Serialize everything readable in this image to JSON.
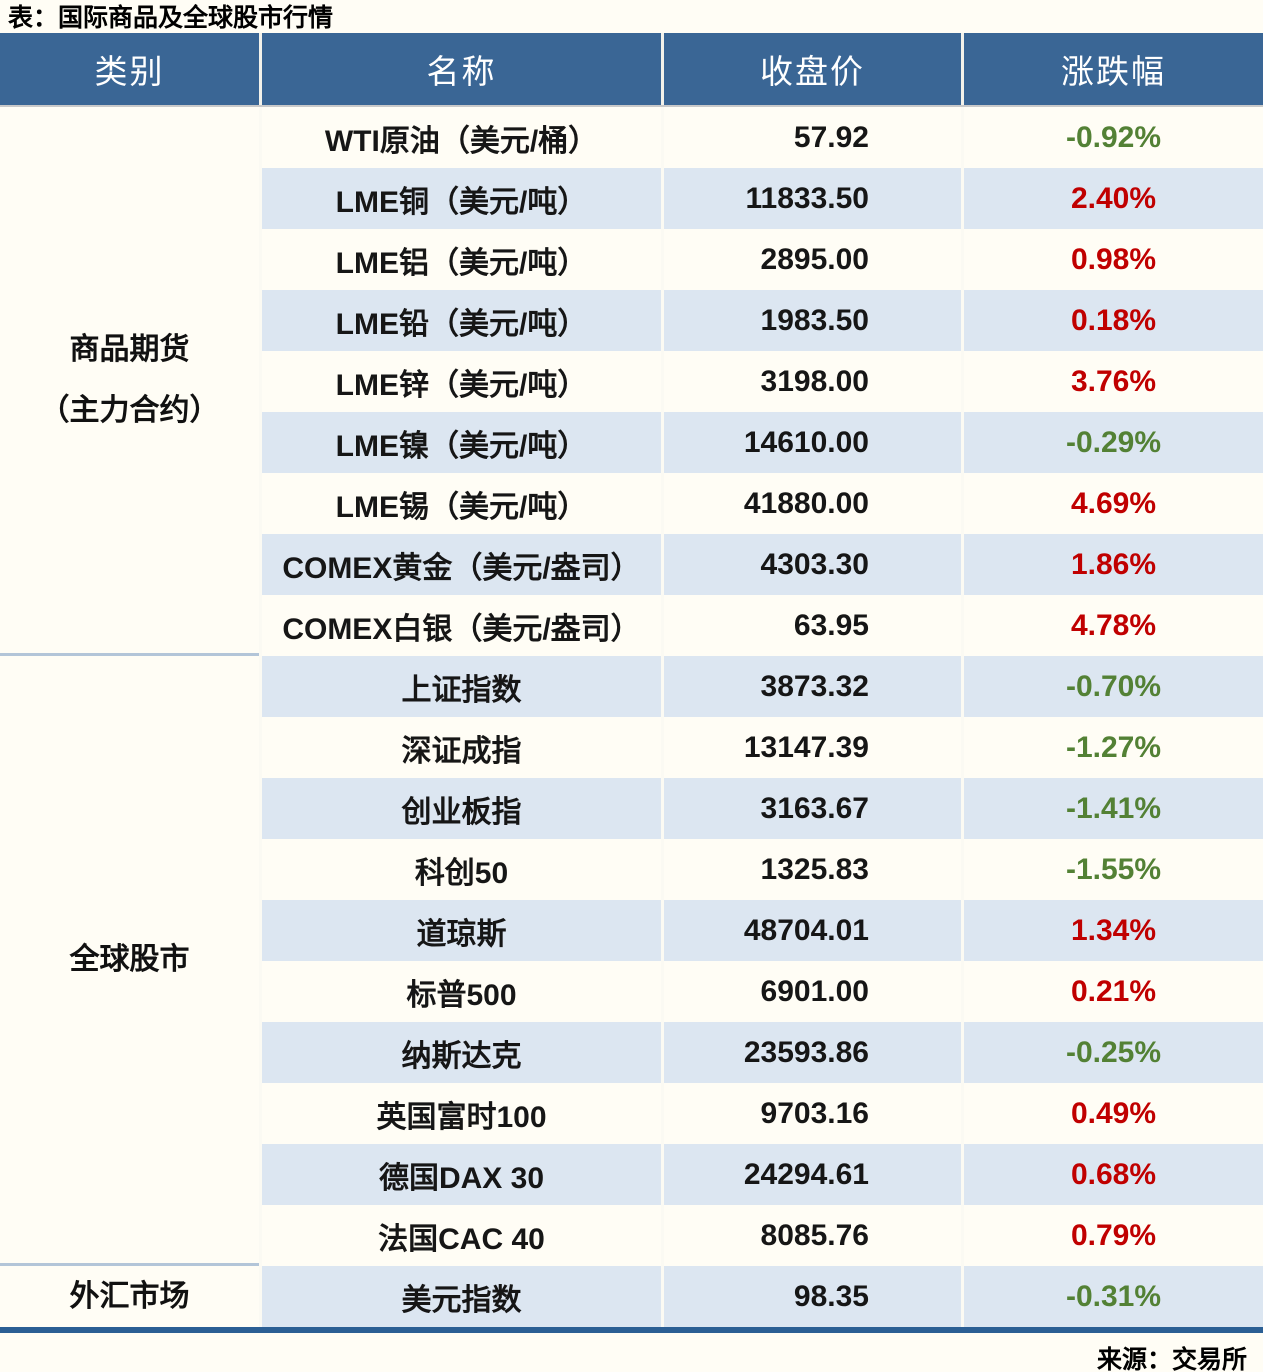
{
  "title": "表：国际商品及全球股市行情",
  "source": "来源：交易所",
  "columns": [
    "类别",
    "名称",
    "收盘价",
    "涨跌幅"
  ],
  "colors": {
    "up_red": "#c00000",
    "down_green": "#538135",
    "header_bg": "#3a6695",
    "row_stripe": "#dce6f1",
    "bottom_rule": "#2b5f94"
  },
  "sections": [
    {
      "category": "商品期货（主力合约）",
      "category_lines": [
        "商品期货",
        "（主力合约）"
      ],
      "rows": [
        {
          "name": "WTI原油（美元/桶）",
          "close": "57.92",
          "change": "-0.92%",
          "dir": "down"
        },
        {
          "name": "LME铜（美元/吨）",
          "close": "11833.50",
          "change": "2.40%",
          "dir": "up"
        },
        {
          "name": "LME铝（美元/吨）",
          "close": "2895.00",
          "change": "0.98%",
          "dir": "up"
        },
        {
          "name": "LME铅（美元/吨）",
          "close": "1983.50",
          "change": "0.18%",
          "dir": "up"
        },
        {
          "name": "LME锌（美元/吨）",
          "close": "3198.00",
          "change": "3.76%",
          "dir": "up"
        },
        {
          "name": "LME镍（美元/吨）",
          "close": "14610.00",
          "change": "-0.29%",
          "dir": "down"
        },
        {
          "name": "LME锡（美元/吨）",
          "close": "41880.00",
          "change": "4.69%",
          "dir": "up"
        },
        {
          "name": "COMEX黄金（美元/盎司）",
          "close": "4303.30",
          "change": "1.86%",
          "dir": "up"
        },
        {
          "name": "COMEX白银（美元/盎司）",
          "close": "63.95",
          "change": "4.78%",
          "dir": "up"
        }
      ]
    },
    {
      "category": "全球股市",
      "category_lines": [
        "全球股市"
      ],
      "rows": [
        {
          "name": "上证指数",
          "close": "3873.32",
          "change": "-0.70%",
          "dir": "down"
        },
        {
          "name": "深证成指",
          "close": "13147.39",
          "change": "-1.27%",
          "dir": "down"
        },
        {
          "name": "创业板指",
          "close": "3163.67",
          "change": "-1.41%",
          "dir": "down"
        },
        {
          "name": "科创50",
          "close": "1325.83",
          "change": "-1.55%",
          "dir": "down"
        },
        {
          "name": "道琼斯",
          "close": "48704.01",
          "change": "1.34%",
          "dir": "up"
        },
        {
          "name": "标普500",
          "close": "6901.00",
          "change": "0.21%",
          "dir": "up"
        },
        {
          "name": "纳斯达克",
          "close": "23593.86",
          "change": "-0.25%",
          "dir": "down"
        },
        {
          "name": "英国富时100",
          "close": "9703.16",
          "change": "0.49%",
          "dir": "up"
        },
        {
          "name": "德国DAX 30",
          "close": "24294.61",
          "change": "0.68%",
          "dir": "up"
        },
        {
          "name": "法国CAC 40",
          "close": "8085.76",
          "change": "0.79%",
          "dir": "up"
        }
      ]
    },
    {
      "category": "外汇市场",
      "category_lines": [
        "外汇市场"
      ],
      "rows": [
        {
          "name": "美元指数",
          "close": "98.35",
          "change": "-0.31%",
          "dir": "down"
        }
      ]
    }
  ],
  "chart_data": {
    "type": "table",
    "title": "表：国际商品及全球股市行情",
    "columns": [
      "类别",
      "名称",
      "收盘价",
      "涨跌幅"
    ],
    "rows": [
      [
        "商品期货（主力合约）",
        "WTI原油（美元/桶）",
        57.92,
        "-0.92%"
      ],
      [
        "商品期货（主力合约）",
        "LME铜（美元/吨）",
        11833.5,
        "2.40%"
      ],
      [
        "商品期货（主力合约）",
        "LME铝（美元/吨）",
        2895.0,
        "0.98%"
      ],
      [
        "商品期货（主力合约）",
        "LME铅（美元/吨）",
        1983.5,
        "0.18%"
      ],
      [
        "商品期货（主力合约）",
        "LME锌（美元/吨）",
        3198.0,
        "3.76%"
      ],
      [
        "商品期货（主力合约）",
        "LME镍（美元/吨）",
        14610.0,
        "-0.29%"
      ],
      [
        "商品期货（主力合约）",
        "LME锡（美元/吨）",
        41880.0,
        "4.69%"
      ],
      [
        "商品期货（主力合约）",
        "COMEX黄金（美元/盎司）",
        4303.3,
        "1.86%"
      ],
      [
        "商品期货（主力合约）",
        "COMEX白银（美元/盎司）",
        63.95,
        "4.78%"
      ],
      [
        "全球股市",
        "上证指数",
        3873.32,
        "-0.70%"
      ],
      [
        "全球股市",
        "深证成指",
        13147.39,
        "-1.27%"
      ],
      [
        "全球股市",
        "创业板指",
        3163.67,
        "-1.41%"
      ],
      [
        "全球股市",
        "科创50",
        1325.83,
        "-1.55%"
      ],
      [
        "全球股市",
        "道琼斯",
        48704.01,
        "1.34%"
      ],
      [
        "全球股市",
        "标普500",
        6901.0,
        "0.21%"
      ],
      [
        "全球股市",
        "纳斯达克",
        23593.86,
        "-0.25%"
      ],
      [
        "全球股市",
        "英国富时100",
        9703.16,
        "0.49%"
      ],
      [
        "全球股市",
        "德国DAX 30",
        24294.61,
        "0.68%"
      ],
      [
        "全球股市",
        "法国CAC 40",
        8085.76,
        "0.79%"
      ],
      [
        "外汇市场",
        "美元指数",
        98.35,
        "-0.31%"
      ]
    ],
    "notes": "涨跌幅红色=上涨(up), 绿色=下跌(down); 来源：交易所"
  }
}
